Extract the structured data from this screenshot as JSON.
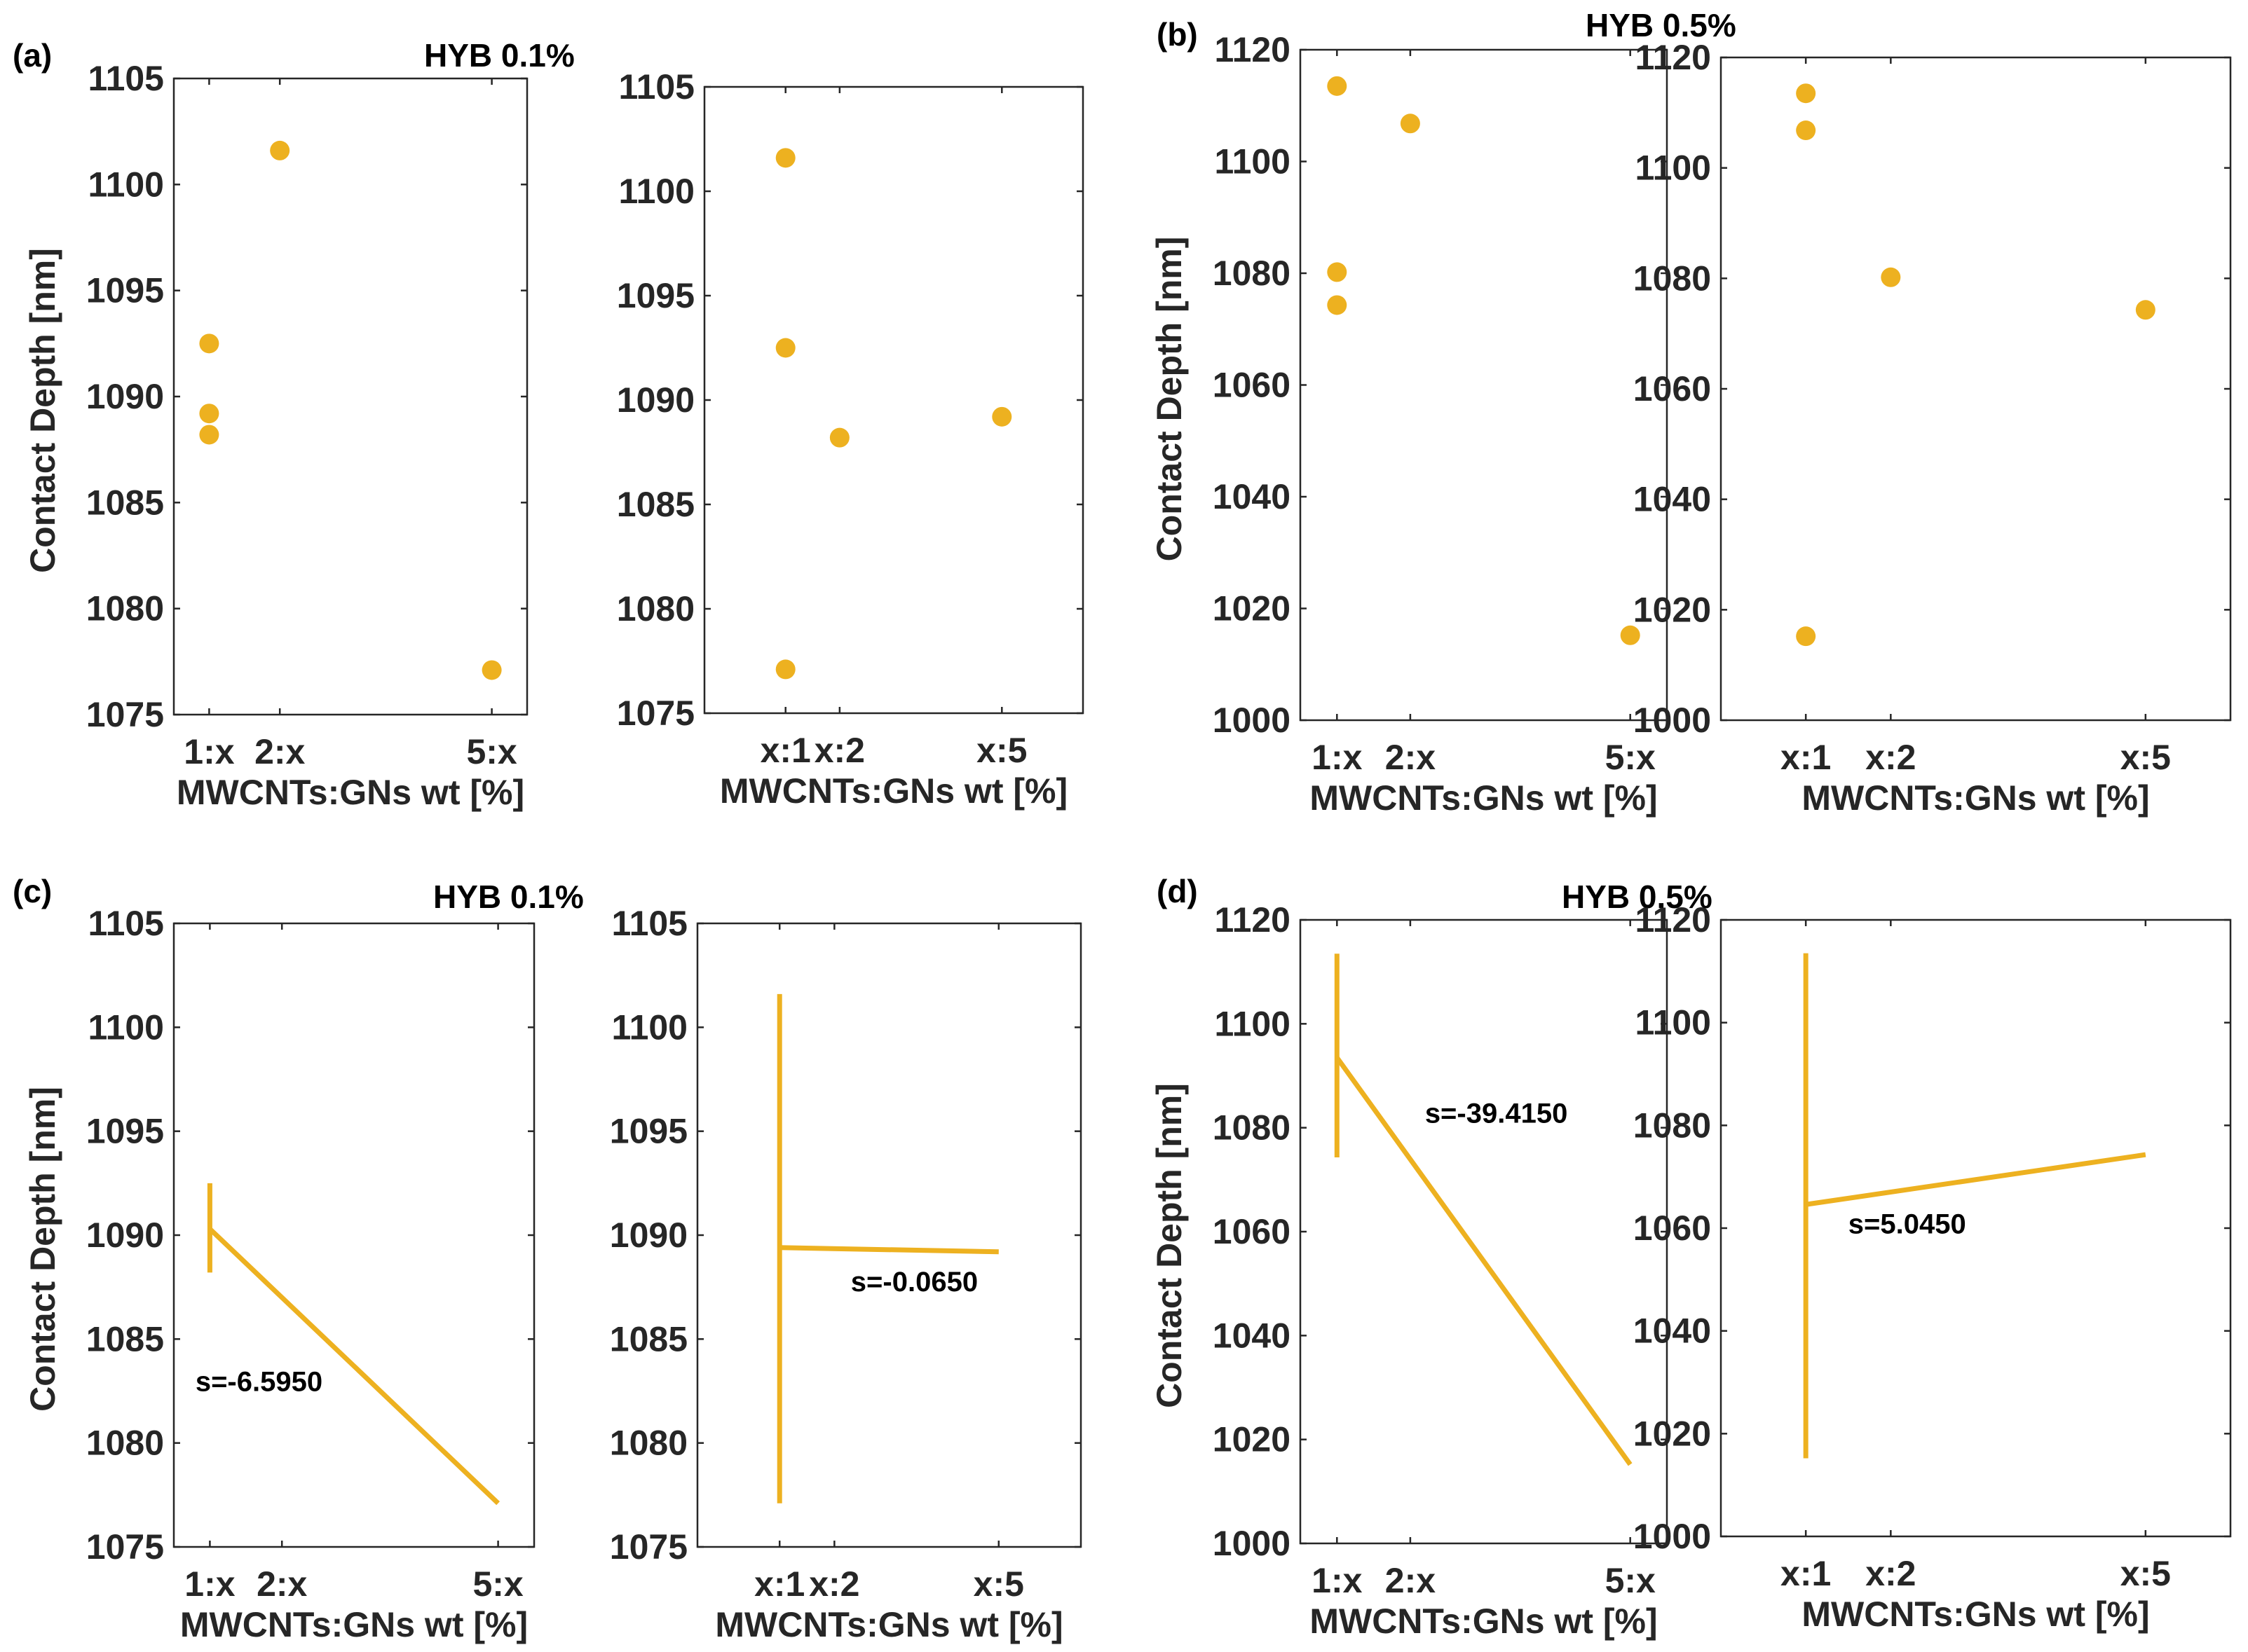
{
  "figure": {
    "panels": [
      {
        "id": "a",
        "label": "(a)",
        "title": "HYB 0.1%"
      },
      {
        "id": "b",
        "label": "(b)",
        "title": "HYB 0.5%"
      },
      {
        "id": "c",
        "label": "(c)",
        "title": "HYB 0.1%"
      },
      {
        "id": "d",
        "label": "(d)",
        "title": "HYB 0.5%"
      }
    ]
  },
  "colors": {
    "series": "#EDB120",
    "axis": "#262626"
  },
  "chart_data": [
    {
      "panel": "a",
      "position": "left",
      "type": "scatter",
      "xlabel": "MWCNTs:GNs wt [%]",
      "ylabel": "Contact Depth [nm]",
      "xlim": [
        0.5,
        5.5
      ],
      "ylim": [
        1075,
        1105
      ],
      "xticks": [
        1,
        2,
        5
      ],
      "xticklabels": [
        "1:x",
        "2:x",
        "5:x"
      ],
      "yticks": [
        1075,
        1080,
        1085,
        1090,
        1095,
        1100,
        1105
      ],
      "points": [
        {
          "x": 1,
          "y": 1092.5
        },
        {
          "x": 1,
          "y": 1089.2
        },
        {
          "x": 1,
          "y": 1088.2
        },
        {
          "x": 2,
          "y": 1101.6
        },
        {
          "x": 5,
          "y": 1077.1
        }
      ]
    },
    {
      "panel": "a",
      "position": "right",
      "type": "scatter",
      "xlabel": "MWCNTs:GNs wt [%]",
      "ylabel": "",
      "xlim": [
        -0.5,
        6.5
      ],
      "ylim": [
        1075,
        1105
      ],
      "xticks": [
        1,
        2,
        5
      ],
      "xticklabels": [
        "x:1",
        "x:2",
        "x:5"
      ],
      "yticks": [
        1075,
        1080,
        1085,
        1090,
        1095,
        1100,
        1105
      ],
      "points": [
        {
          "x": 1,
          "y": 1101.6
        },
        {
          "x": 1,
          "y": 1092.5
        },
        {
          "x": 1,
          "y": 1077.1
        },
        {
          "x": 2,
          "y": 1088.2
        },
        {
          "x": 5,
          "y": 1089.2
        }
      ]
    },
    {
      "panel": "b",
      "position": "left",
      "type": "scatter",
      "xlabel": "MWCNTs:GNs wt [%]",
      "ylabel": "Contact Depth [nm]",
      "xlim": [
        0.5,
        5.5
      ],
      "ylim": [
        1000,
        1120
      ],
      "xticks": [
        1,
        2,
        5
      ],
      "xticklabels": [
        "1:x",
        "2:x",
        "5:x"
      ],
      "yticks": [
        1000,
        1020,
        1040,
        1060,
        1080,
        1100,
        1120
      ],
      "points": [
        {
          "x": 1,
          "y": 1113.5
        },
        {
          "x": 1,
          "y": 1080.2
        },
        {
          "x": 1,
          "y": 1074.3
        },
        {
          "x": 2,
          "y": 1106.8
        },
        {
          "x": 5,
          "y": 1015.2
        }
      ]
    },
    {
      "panel": "b",
      "position": "right",
      "type": "scatter",
      "xlabel": "MWCNTs:GNs wt [%]",
      "ylabel": "",
      "xlim": [
        0,
        6
      ],
      "ylim": [
        1000,
        1120
      ],
      "xticks": [
        1,
        2,
        5
      ],
      "xticklabels": [
        "x:1",
        "x:2",
        "x:5"
      ],
      "yticks": [
        1000,
        1020,
        1040,
        1060,
        1080,
        1100,
        1120
      ],
      "points": [
        {
          "x": 1,
          "y": 1113.5
        },
        {
          "x": 1,
          "y": 1106.8
        },
        {
          "x": 1,
          "y": 1015.2
        },
        {
          "x": 2,
          "y": 1080.2
        },
        {
          "x": 5,
          "y": 1074.3
        }
      ]
    },
    {
      "panel": "c",
      "position": "left",
      "type": "line",
      "xlabel": "MWCNTs:GNs wt [%]",
      "ylabel": "Contact Depth [nm]",
      "xlim": [
        0.5,
        5.5
      ],
      "ylim": [
        1075,
        1105
      ],
      "xticks": [
        1,
        2,
        5
      ],
      "xticklabels": [
        "1:x",
        "2:x",
        "5:x"
      ],
      "yticks": [
        1075,
        1080,
        1085,
        1090,
        1095,
        1100,
        1105
      ],
      "segments": [
        {
          "name": "spread",
          "x": [
            1,
            1
          ],
          "y": [
            1088.2,
            1092.5
          ]
        },
        {
          "name": "slope",
          "x": [
            1,
            5
          ],
          "y": [
            1090.3,
            1077.1
          ]
        }
      ],
      "annotation": {
        "text": "s=-6.5950",
        "x": 0.8,
        "y": 1082.5
      }
    },
    {
      "panel": "c",
      "position": "right",
      "type": "line",
      "xlabel": "MWCNTs:GNs wt [%]",
      "ylabel": "",
      "xlim": [
        -0.5,
        6.5
      ],
      "ylim": [
        1075,
        1105
      ],
      "xticks": [
        1,
        2,
        5
      ],
      "xticklabels": [
        "x:1",
        "x:2",
        "x:5"
      ],
      "yticks": [
        1075,
        1080,
        1085,
        1090,
        1095,
        1100,
        1105
      ],
      "segments": [
        {
          "name": "spread",
          "x": [
            1,
            1
          ],
          "y": [
            1077.1,
            1101.6
          ]
        },
        {
          "name": "slope",
          "x": [
            1,
            5
          ],
          "y": [
            1089.4,
            1089.2
          ]
        }
      ],
      "annotation": {
        "text": "s=-0.0650",
        "x": 2.3,
        "y": 1087.3
      }
    },
    {
      "panel": "d",
      "position": "left",
      "type": "line",
      "xlabel": "MWCNTs:GNs wt [%]",
      "ylabel": "Contact Depth [nm]",
      "xlim": [
        0.5,
        5.5
      ],
      "ylim": [
        1000,
        1120
      ],
      "xticks": [
        1,
        2,
        5
      ],
      "xticklabels": [
        "1:x",
        "2:x",
        "5:x"
      ],
      "yticks": [
        1000,
        1020,
        1040,
        1060,
        1080,
        1100,
        1120
      ],
      "segments": [
        {
          "name": "spread",
          "x": [
            1,
            1
          ],
          "y": [
            1074.3,
            1113.5
          ]
        },
        {
          "name": "slope",
          "x": [
            1,
            5
          ],
          "y": [
            1093.5,
            1015.2
          ]
        }
      ],
      "annotation": {
        "text": "s=-39.4150",
        "x": 2.2,
        "y": 1081
      }
    },
    {
      "panel": "d",
      "position": "right",
      "type": "line",
      "xlabel": "MWCNTs:GNs wt [%]",
      "ylabel": "",
      "xlim": [
        0,
        6
      ],
      "ylim": [
        1000,
        1120
      ],
      "xticks": [
        1,
        2,
        5
      ],
      "xticklabels": [
        "x:1",
        "x:2",
        "x:5"
      ],
      "yticks": [
        1000,
        1020,
        1040,
        1060,
        1080,
        1100,
        1120
      ],
      "segments": [
        {
          "name": "spread",
          "x": [
            1,
            1
          ],
          "y": [
            1015.2,
            1113.5
          ]
        },
        {
          "name": "slope",
          "x": [
            1,
            5
          ],
          "y": [
            1064.6,
            1074.3
          ]
        }
      ],
      "annotation": {
        "text": "s=5.0450",
        "x": 1.5,
        "y": 1059
      }
    }
  ]
}
